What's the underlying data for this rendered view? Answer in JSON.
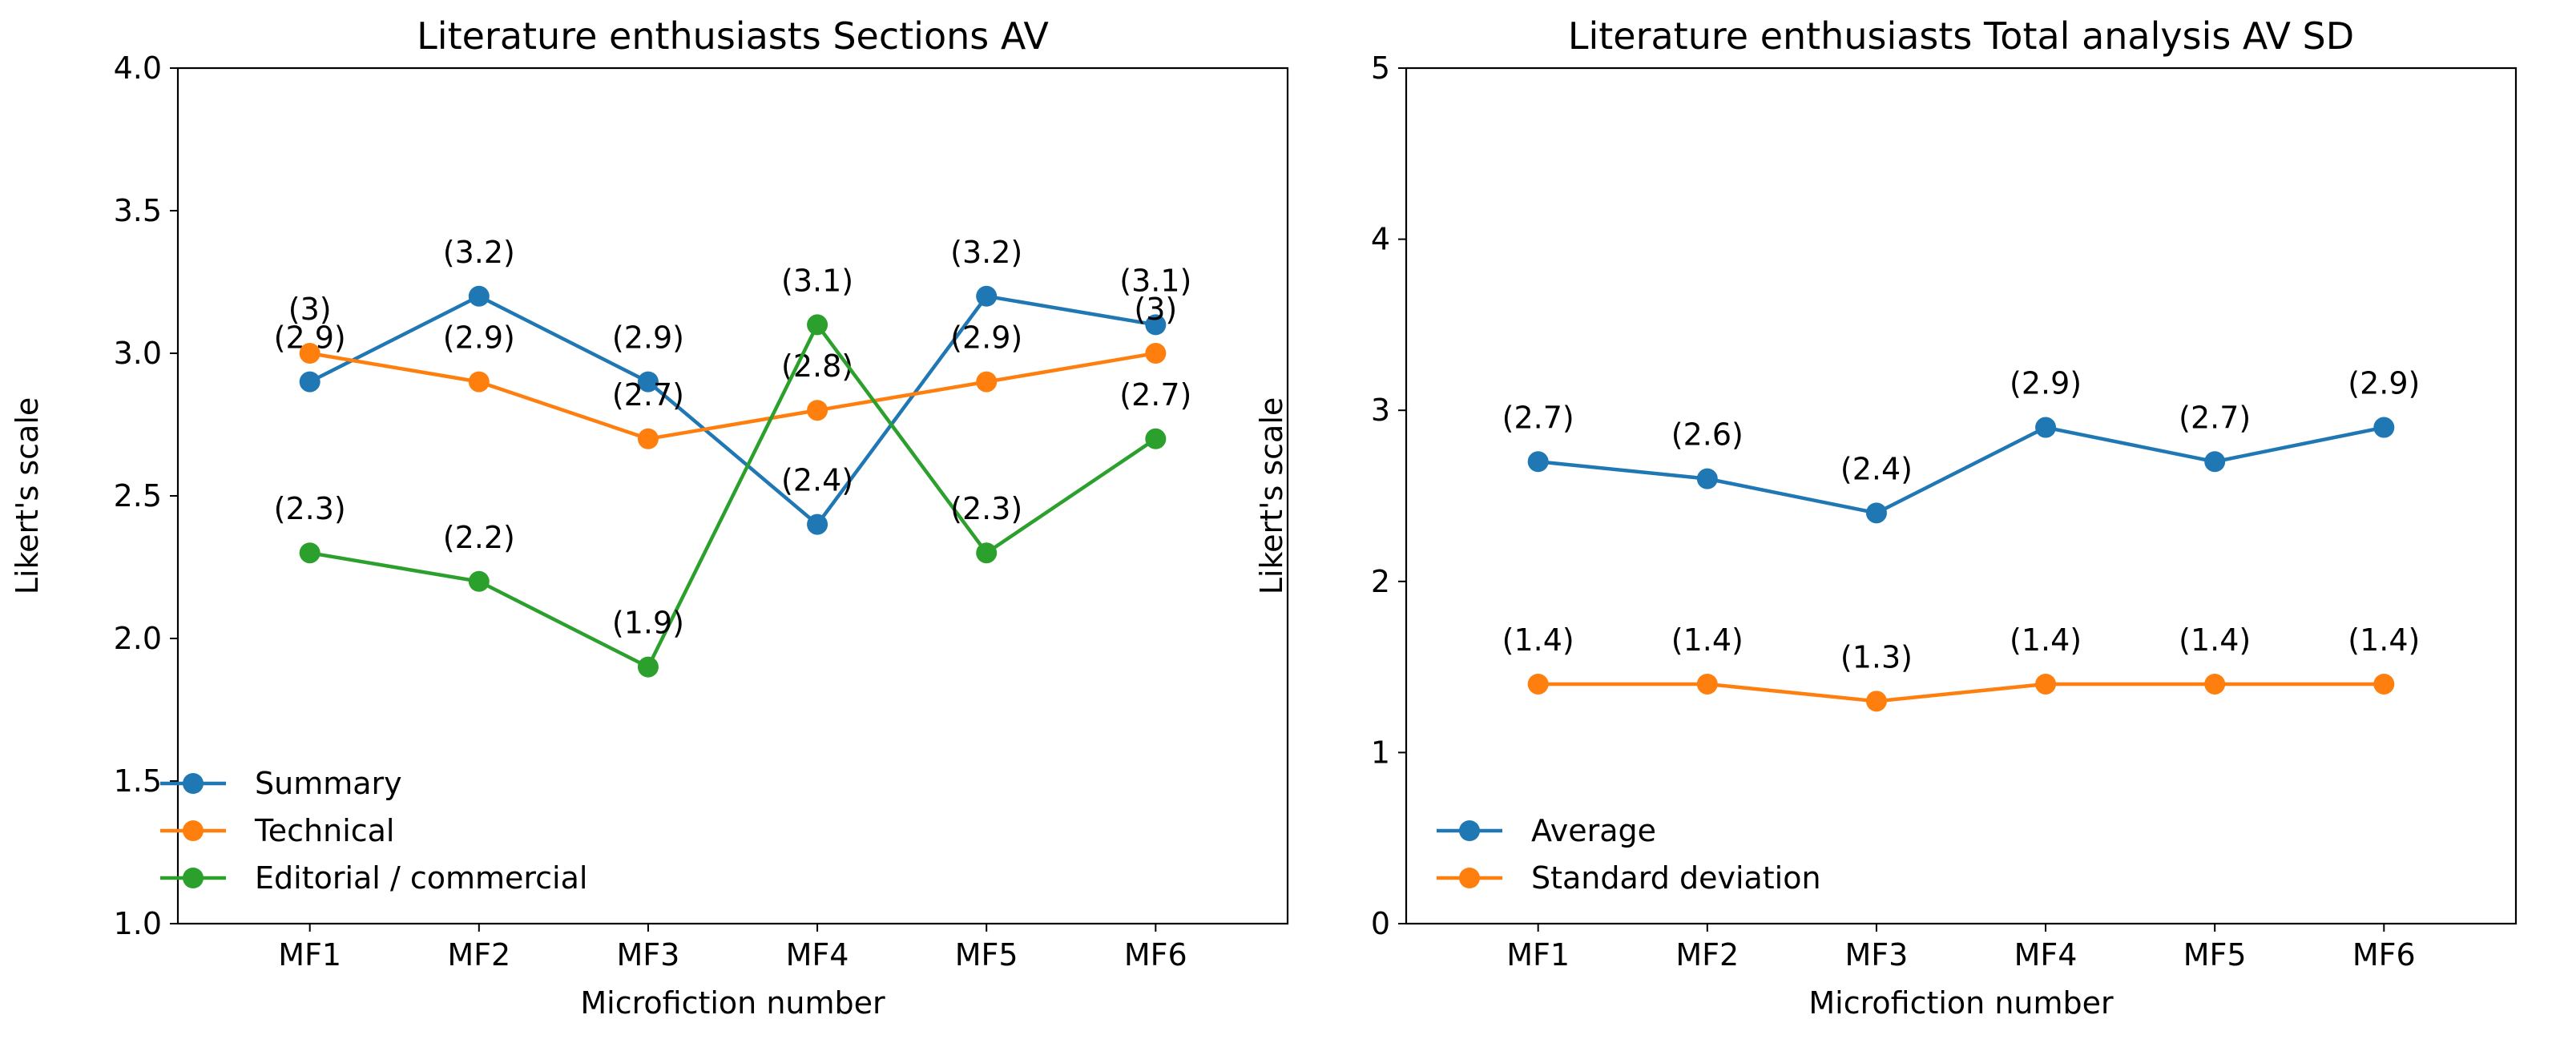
{
  "chart_data": [
    {
      "type": "line",
      "title": "Literature enthusiasts Sections AV",
      "xlabel": "Microfiction number",
      "ylabel": "Likert's scale",
      "categories": [
        "MF1",
        "MF2",
        "MF3",
        "MF4",
        "MF5",
        "MF6"
      ],
      "ylim": [
        1.0,
        4.0
      ],
      "yticks": [
        "1.0",
        "1.5",
        "2.0",
        "2.5",
        "3.0",
        "3.5",
        "4.0"
      ],
      "grid": false,
      "legend_position": "lower-left",
      "series": [
        {
          "name": "Summary",
          "color": "#1f77b4",
          "values": [
            2.9,
            3.2,
            2.9,
            2.4,
            3.2,
            3.1
          ],
          "labels": [
            "(2.9)",
            "(3.2)",
            "(2.9)",
            "(2.4)",
            "(3.2)",
            "(3.1)"
          ]
        },
        {
          "name": "Technical",
          "color": "#ff7f0e",
          "values": [
            3.0,
            2.9,
            2.7,
            2.8,
            2.9,
            3.0
          ],
          "labels": [
            "(3)",
            "(2.9)",
            "(2.7)",
            "(2.8)",
            "(2.9)",
            "(3)"
          ]
        },
        {
          "name": "Editorial / commercial",
          "color": "#2ca02c",
          "values": [
            2.3,
            2.2,
            1.9,
            3.1,
            2.3,
            2.7
          ],
          "labels": [
            "(2.3)",
            "(2.2)",
            "(1.9)",
            "(3.1)",
            "(2.3)",
            "(2.7)"
          ]
        }
      ]
    },
    {
      "type": "line",
      "title": "Literature enthusiasts Total analysis AV SD",
      "xlabel": "Microfiction number",
      "ylabel": "Likert's scale",
      "categories": [
        "MF1",
        "MF2",
        "MF3",
        "MF4",
        "MF5",
        "MF6"
      ],
      "ylim": [
        0,
        5
      ],
      "yticks": [
        "0",
        "1",
        "2",
        "3",
        "4",
        "5"
      ],
      "grid": false,
      "legend_position": "lower-left",
      "series": [
        {
          "name": "Average",
          "color": "#1f77b4",
          "values": [
            2.7,
            2.6,
            2.4,
            2.9,
            2.7,
            2.9
          ],
          "labels": [
            "(2.7)",
            "(2.6)",
            "(2.4)",
            "(2.9)",
            "(2.7)",
            "(2.9)"
          ]
        },
        {
          "name": "Standard deviation",
          "color": "#ff7f0e",
          "values": [
            1.4,
            1.4,
            1.3,
            1.4,
            1.4,
            1.4
          ],
          "labels": [
            "(1.4)",
            "(1.4)",
            "(1.3)",
            "(1.4)",
            "(1.4)",
            "(1.4)"
          ]
        }
      ]
    }
  ]
}
